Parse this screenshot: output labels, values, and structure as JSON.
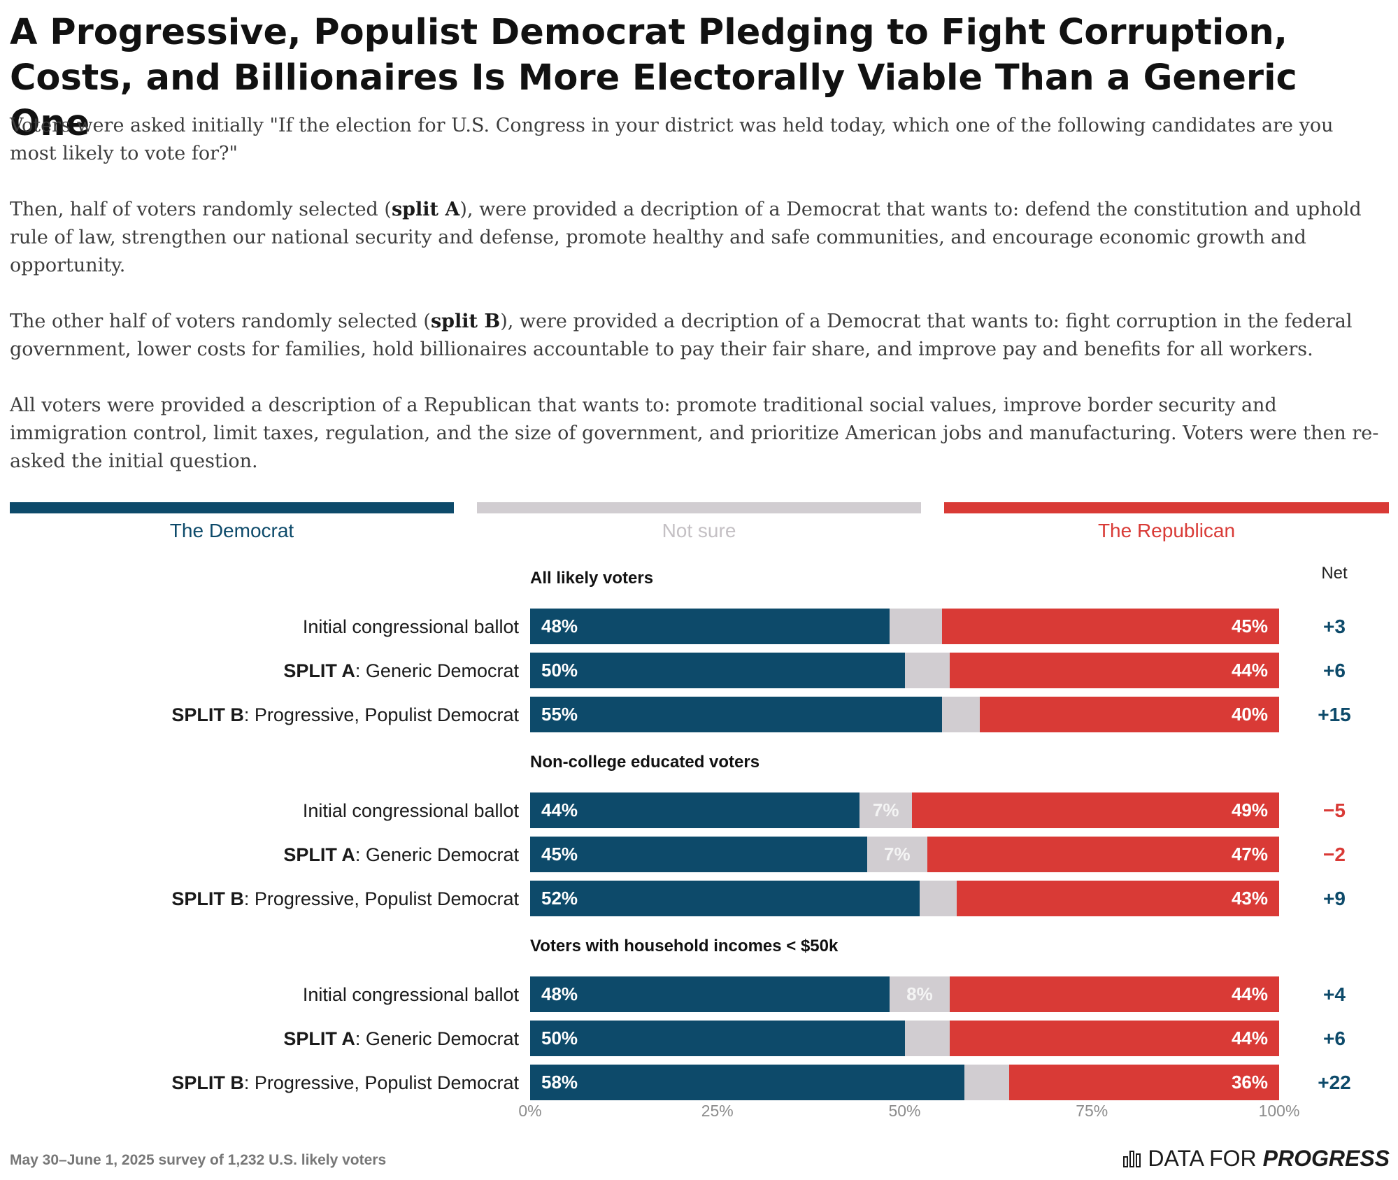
{
  "title": "A Progressive, Populist Democrat Pledging to Fight Corruption, Costs, and Billionaires Is More Electorally Viable Than a Generic One",
  "intro": {
    "p1": "Voters were asked initially \"If the election for U.S. Congress in your district was held today, which one of the following candidates are you most likely to vote for?\"",
    "p2_before": "Then, half of voters randomly selected (",
    "p2_bold": "split A",
    "p2_after": "), were provided a decription of a Democrat that wants to: defend the constitution and uphold rule of law, strengthen our national security and defense, promote healthy and safe communities, and encourage economic growth and opportunity.",
    "p3_before": "The other half of voters randomly selected (",
    "p3_bold": "split B",
    "p3_after": "), were provided a decription of a Democrat that wants to: fight corruption in the federal government, lower costs for families, hold billionaires accountable to pay their fair share, and improve pay and benefits for all workers.",
    "p4": "All voters were provided a description of a Republican that wants to: promote traditional social values, improve border security and immigration control, limit taxes, regulation, and the size of government, and prioritize American jobs and manufacturing. Voters were then re-asked the initial question."
  },
  "legend": {
    "democrat": "The Democrat",
    "not_sure": "Not sure",
    "republican": "The Republican"
  },
  "colors": {
    "democrat": "#0d4a6a",
    "not_sure": "#d1cdd1",
    "republican": "#d93a36",
    "not_sure_label": "#f4f4f4"
  },
  "footer": {
    "source": "May 30–June 1, 2025 survey of 1,232 U.S. likely voters"
  },
  "logo": {
    "text_regular": "DATA FOR",
    "text_bold": "PROGRESS",
    "icon": "bar-chart-icon"
  },
  "chart_data": {
    "type": "bar",
    "orientation": "horizontal",
    "stacked": true,
    "xlim": [
      0,
      100
    ],
    "x_ticks": [
      "0%",
      "25%",
      "50%",
      "75%",
      "100%"
    ],
    "net_header": "Net",
    "series": [
      {
        "name": "The Democrat",
        "color": "#0d4a6a"
      },
      {
        "name": "Not sure",
        "color": "#d1cdd1"
      },
      {
        "name": "The Republican",
        "color": "#d93a36"
      }
    ],
    "groups": [
      {
        "title": "All likely voters",
        "rows": [
          {
            "label_bold": "",
            "label": "Initial congressional ballot",
            "democrat": 48,
            "not_sure": 7,
            "republican": 45,
            "not_sure_shown": "",
            "net": "+3"
          },
          {
            "label_bold": "SPLIT A",
            "label": ": Generic Democrat",
            "democrat": 50,
            "not_sure": 6,
            "republican": 44,
            "not_sure_shown": "",
            "net": "+6"
          },
          {
            "label_bold": "SPLIT B",
            "label": ": Progressive, Populist Democrat",
            "democrat": 55,
            "not_sure": 5,
            "republican": 40,
            "not_sure_shown": "",
            "net": "+15"
          }
        ]
      },
      {
        "title": "Non-college educated voters",
        "rows": [
          {
            "label_bold": "",
            "label": "Initial congressional ballot",
            "democrat": 44,
            "not_sure": 7,
            "republican": 49,
            "not_sure_shown": "7%",
            "net": "−5"
          },
          {
            "label_bold": "SPLIT A",
            "label": ": Generic Democrat",
            "democrat": 45,
            "not_sure": 7,
            "republican": 47,
            "not_sure_shown": "7%",
            "net": "−2"
          },
          {
            "label_bold": "SPLIT B",
            "label": ": Progressive, Populist Democrat",
            "democrat": 52,
            "not_sure": 4,
            "republican": 43,
            "not_sure_shown": "",
            "net": "+9"
          }
        ]
      },
      {
        "title": "Voters with household incomes < $50k",
        "rows": [
          {
            "label_bold": "",
            "label": "Initial congressional ballot",
            "democrat": 48,
            "not_sure": 8,
            "republican": 44,
            "not_sure_shown": "8%",
            "net": "+4"
          },
          {
            "label_bold": "SPLIT A",
            "label": ": Generic Democrat",
            "democrat": 50,
            "not_sure": 6,
            "republican": 44,
            "not_sure_shown": "",
            "net": "+6"
          },
          {
            "label_bold": "SPLIT B",
            "label": ": Progressive, Populist Democrat",
            "democrat": 58,
            "not_sure": 6,
            "republican": 36,
            "not_sure_shown": "",
            "net": "+22"
          }
        ]
      }
    ]
  }
}
